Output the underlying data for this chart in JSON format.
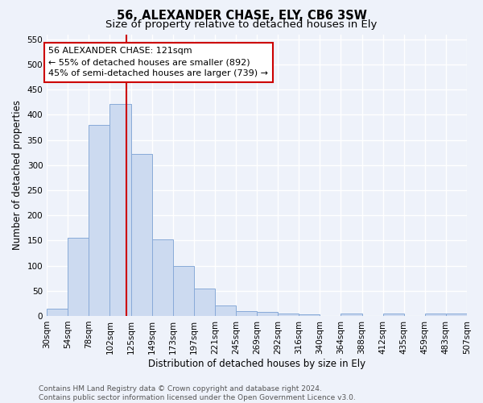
{
  "title": "56, ALEXANDER CHASE, ELY, CB6 3SW",
  "subtitle": "Size of property relative to detached houses in Ely",
  "xlabel": "Distribution of detached houses by size in Ely",
  "ylabel": "Number of detached properties",
  "bar_color": "#ccdaf0",
  "bar_edge_color": "#88aad8",
  "bins": [
    30,
    54,
    78,
    102,
    126,
    150,
    174,
    198,
    222,
    246,
    270,
    294,
    318,
    342,
    366,
    390,
    414,
    438,
    462,
    486,
    510
  ],
  "bin_labels": [
    "30sqm",
    "54sqm",
    "78sqm",
    "102sqm",
    "125sqm",
    "149sqm",
    "173sqm",
    "197sqm",
    "221sqm",
    "245sqm",
    "269sqm",
    "292sqm",
    "316sqm",
    "340sqm",
    "364sqm",
    "388sqm",
    "412sqm",
    "435sqm",
    "459sqm",
    "483sqm",
    "507sqm"
  ],
  "values": [
    15,
    155,
    380,
    422,
    322,
    152,
    100,
    55,
    20,
    10,
    8,
    4,
    3,
    0,
    5,
    0,
    4,
    0,
    4,
    4
  ],
  "vline_x": 121,
  "vline_color": "#cc0000",
  "annotation_line1": "56 ALEXANDER CHASE: 121sqm",
  "annotation_line2": "← 55% of detached houses are smaller (892)",
  "annotation_line3": "45% of semi-detached houses are larger (739) →",
  "annotation_box_color": "#ffffff",
  "annotation_box_edge": "#cc0000",
  "ylim": [
    0,
    560
  ],
  "yticks": [
    0,
    50,
    100,
    150,
    200,
    250,
    300,
    350,
    400,
    450,
    500,
    550
  ],
  "footnote": "Contains HM Land Registry data © Crown copyright and database right 2024.\nContains public sector information licensed under the Open Government Licence v3.0.",
  "background_color": "#eef2fa",
  "grid_color": "#ffffff",
  "title_fontsize": 10.5,
  "subtitle_fontsize": 9.5,
  "label_fontsize": 8.5,
  "tick_fontsize": 7.5,
  "annotation_fontsize": 8,
  "footnote_fontsize": 6.5
}
